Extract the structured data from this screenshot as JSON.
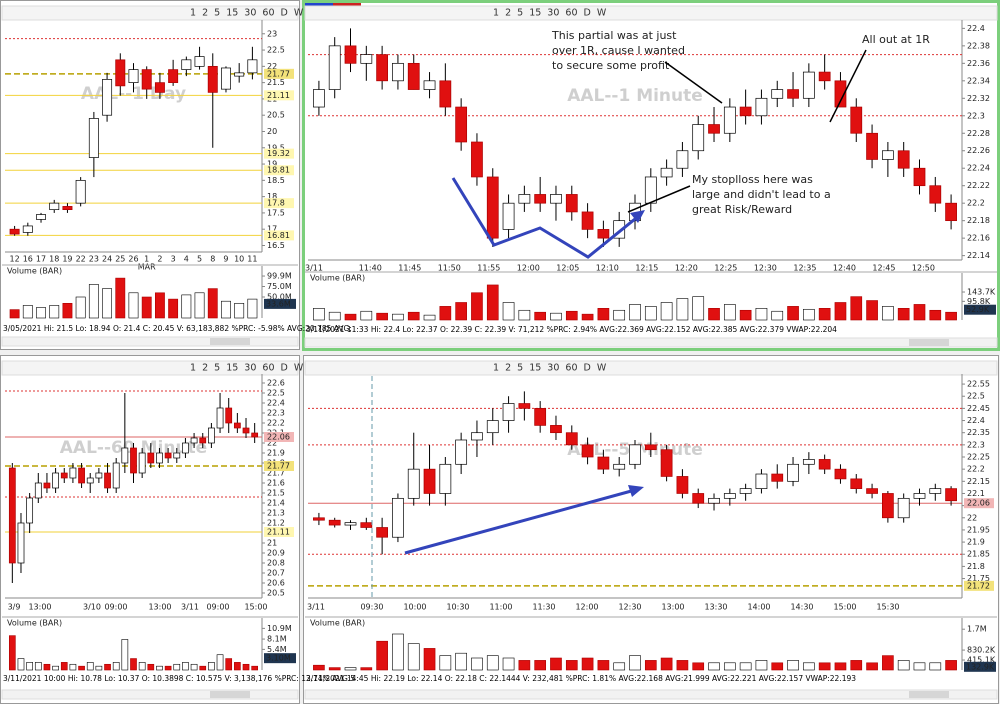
{
  "panels": [
    {
      "toolbar": "1 2 5 15 30 60 D W",
      "watermark": "AAL--1 Day",
      "ylim": [
        16.3,
        23.3
      ],
      "yticks": [
        23,
        22.5,
        22,
        21.5,
        21,
        20.5,
        20,
        19.5,
        19,
        18.5,
        18,
        17.5,
        17,
        16.5
      ],
      "yellow_levels": [
        21.11,
        19.32,
        18.81,
        17.8,
        16.81
      ],
      "red_levels": [
        22.85
      ],
      "price_box": {
        "value": 21.77,
        "color": "#f3e27a"
      },
      "candles": [
        [
          17.0,
          17.1,
          16.8,
          16.85
        ],
        [
          16.9,
          17.2,
          16.8,
          17.1
        ],
        [
          17.3,
          17.5,
          17.2,
          17.45
        ],
        [
          17.6,
          17.9,
          17.5,
          17.8
        ],
        [
          17.7,
          17.8,
          17.5,
          17.6
        ],
        [
          17.8,
          18.6,
          17.7,
          18.5
        ],
        [
          19.2,
          20.6,
          18.6,
          20.4
        ],
        [
          20.5,
          21.8,
          20.3,
          21.6
        ],
        [
          22.2,
          22.4,
          21.1,
          21.4
        ],
        [
          21.5,
          22.1,
          21.2,
          21.9
        ],
        [
          21.9,
          22.0,
          21.0,
          21.3
        ],
        [
          21.5,
          21.8,
          21.0,
          21.2
        ],
        [
          21.9,
          22.2,
          21.4,
          21.5
        ],
        [
          21.9,
          22.3,
          21.7,
          22.2
        ],
        [
          22.0,
          22.6,
          21.9,
          22.3
        ],
        [
          22.0,
          22.4,
          19.5,
          21.2
        ],
        [
          21.3,
          22.0,
          21.2,
          21.95
        ],
        [
          21.7,
          22.1,
          21.5,
          21.8
        ],
        [
          21.8,
          22.6,
          21.6,
          22.2
        ]
      ],
      "time_labels": [
        "12",
        "16",
        "17",
        "18",
        "19",
        "22",
        "23",
        "24",
        "25",
        "26",
        "1",
        "2",
        "3",
        "4",
        "5",
        "8",
        "9",
        "10",
        "11"
      ],
      "month_label": "MAR",
      "volume_title": "Volume (BAR)",
      "volumes": [
        20000000,
        30000000,
        25000000,
        30000000,
        35000000,
        50000000,
        80000000,
        70000000,
        95000000,
        60000000,
        50000000,
        60000000,
        45000000,
        55000000,
        60000000,
        70000000,
        40000000,
        35000000,
        45000000
      ],
      "vlim": [
        0,
        100000000
      ],
      "vticks": [
        {
          "value": 99900000,
          "label": "99.9M"
        },
        {
          "value": 75000000,
          "label": "75.0M"
        },
        {
          "value": 50000000,
          "label": "50.0M"
        }
      ],
      "vbox": {
        "value": 33600000,
        "label": "33.6M",
        "color": "#1f3550"
      },
      "info": "3/05/2021  Hi: 21.5  Lo: 18.94  O: 21.4  C: 20.45  V: 63,183,882 %PRC: -5.98% AVG:20.785 AVG:"
    },
    {
      "toolbar": "1 2 5 15 30 60 D W",
      "watermark": "AAL--1 Minute",
      "ylim": [
        22.135,
        22.405
      ],
      "yticks": [
        22.4,
        22.38,
        22.36,
        22.34,
        22.32,
        22.3,
        22.28,
        22.26,
        22.24,
        22.22,
        22.2,
        22.18,
        22.16,
        22.14
      ],
      "yellow_levels": [],
      "red_levels": [
        22.37,
        22.3
      ],
      "candles": [
        [
          22.31,
          22.34,
          22.3,
          22.33
        ],
        [
          22.33,
          22.39,
          22.32,
          22.38
        ],
        [
          22.38,
          22.4,
          22.35,
          22.36
        ],
        [
          22.36,
          22.38,
          22.34,
          22.37
        ],
        [
          22.37,
          22.38,
          22.33,
          22.34
        ],
        [
          22.34,
          22.37,
          22.33,
          22.36
        ],
        [
          22.36,
          22.37,
          22.33,
          22.33
        ],
        [
          22.33,
          22.35,
          22.32,
          22.34
        ],
        [
          22.34,
          22.36,
          22.3,
          22.31
        ],
        [
          22.31,
          22.32,
          22.26,
          22.27
        ],
        [
          22.27,
          22.28,
          22.22,
          22.23
        ],
        [
          22.23,
          22.24,
          22.15,
          22.16
        ],
        [
          22.17,
          22.21,
          22.16,
          22.2
        ],
        [
          22.2,
          22.22,
          22.19,
          22.21
        ],
        [
          22.21,
          22.23,
          22.19,
          22.2
        ],
        [
          22.2,
          22.22,
          22.18,
          22.21
        ],
        [
          22.21,
          22.22,
          22.18,
          22.19
        ],
        [
          22.19,
          22.2,
          22.16,
          22.17
        ],
        [
          22.17,
          22.18,
          22.15,
          22.16
        ],
        [
          22.16,
          22.19,
          22.15,
          22.18
        ],
        [
          22.18,
          22.21,
          22.17,
          22.2
        ],
        [
          22.2,
          22.24,
          22.19,
          22.23
        ],
        [
          22.23,
          22.25,
          22.22,
          22.24
        ],
        [
          22.24,
          22.27,
          22.23,
          22.26
        ],
        [
          22.26,
          22.3,
          22.25,
          22.29
        ],
        [
          22.29,
          22.31,
          22.27,
          22.28
        ],
        [
          22.28,
          22.32,
          22.27,
          22.31
        ],
        [
          22.31,
          22.33,
          22.29,
          22.3
        ],
        [
          22.3,
          22.33,
          22.29,
          22.32
        ],
        [
          22.32,
          22.34,
          22.31,
          22.33
        ],
        [
          22.33,
          22.35,
          22.31,
          22.32
        ],
        [
          22.32,
          22.36,
          22.31,
          22.35
        ],
        [
          22.35,
          22.37,
          22.33,
          22.34
        ],
        [
          22.34,
          22.35,
          22.31,
          22.31
        ],
        [
          22.31,
          22.32,
          22.27,
          22.28
        ],
        [
          22.28,
          22.29,
          22.24,
          22.25
        ],
        [
          22.25,
          22.27,
          22.23,
          22.26
        ],
        [
          22.26,
          22.27,
          22.23,
          22.24
        ],
        [
          22.24,
          22.25,
          22.21,
          22.22
        ],
        [
          22.22,
          22.23,
          22.19,
          22.2
        ],
        [
          22.2,
          22.21,
          22.17,
          22.18
        ]
      ],
      "time_labels": [
        "3/11",
        "11:40",
        "11:45",
        "11:50",
        "11:55",
        "12:00",
        "12:05",
        "12:10",
        "12:15",
        "12:20",
        "12:25",
        "12:30",
        "12:35",
        "12:40",
        "12:45",
        "12:50"
      ],
      "volume_title": "Volume (BAR)",
      "volumes": [
        60000,
        40000,
        30000,
        45000,
        35000,
        30000,
        40000,
        25000,
        70000,
        90000,
        140000,
        180000,
        90000,
        50000,
        40000,
        35000,
        45000,
        30000,
        60000,
        50000,
        80000,
        70000,
        90000,
        110000,
        120000,
        60000,
        80000,
        50000,
        60000,
        45000,
        70000,
        55000,
        60000,
        90000,
        120000,
        100000,
        70000,
        60000,
        80000,
        50000,
        40000
      ],
      "vlim": [
        0,
        190000
      ],
      "vticks": [
        {
          "value": 143700,
          "label": "143.7K"
        },
        {
          "value": 95800,
          "label": "95.8K"
        }
      ],
      "vbox": {
        "value": 52900,
        "label": "52.9K",
        "color": "#1f3550"
      },
      "info": "3/11/2021 11:33  Hi: 22.4  Lo: 22.37  O: 22.39  C: 22.39  V: 71,212 %PRC: 2.94% AVG:22.369  AVG:22.152  AVG:22.385  AVG:22.379  VWAP:22.204",
      "annotations": [
        [
          "This partial was at just",
          "over 1R, cause I wanted",
          "to secure some profit"
        ],
        [
          "All out at 1R"
        ],
        [
          "My stoplloss here was",
          "large and didn't lead to a",
          "great Risk/Reward"
        ]
      ]
    },
    {
      "toolbar": "1 2 5 15 30 60 D W",
      "watermark": "AAL--60 Minute",
      "ylim": [
        20.45,
        22.65
      ],
      "yticks": [
        22.6,
        22.5,
        22.4,
        22.3,
        22.2,
        22.1,
        22,
        21.9,
        21.8,
        21.7,
        21.6,
        21.5,
        21.4,
        21.3,
        21.2,
        21,
        20.9,
        20.8,
        20.7,
        20.6,
        20.5
      ],
      "yellow_levels": [
        21.11
      ],
      "red_levels": [
        22.52,
        21.46
      ],
      "price_box": {
        "value": 21.77,
        "color": "#f3e27a"
      },
      "red_box": {
        "value": 22.06,
        "color": "#f2b6b6"
      },
      "candles": [
        [
          21.75,
          21.8,
          20.6,
          20.8
        ],
        [
          20.8,
          21.3,
          20.7,
          21.2
        ],
        [
          21.2,
          21.5,
          21.1,
          21.45
        ],
        [
          21.45,
          21.7,
          21.4,
          21.6
        ],
        [
          21.6,
          21.7,
          21.5,
          21.55
        ],
        [
          21.55,
          21.75,
          21.5,
          21.7
        ],
        [
          21.7,
          21.75,
          21.6,
          21.65
        ],
        [
          21.65,
          21.8,
          21.6,
          21.75
        ],
        [
          21.75,
          21.8,
          21.55,
          21.6
        ],
        [
          21.6,
          21.7,
          21.5,
          21.65
        ],
        [
          21.65,
          21.75,
          21.6,
          21.7
        ],
        [
          21.7,
          21.8,
          21.5,
          21.55
        ],
        [
          21.55,
          21.85,
          21.5,
          21.8
        ],
        [
          21.8,
          22.5,
          21.7,
          21.95
        ],
        [
          21.95,
          22.0,
          21.6,
          21.7
        ],
        [
          21.7,
          21.95,
          21.65,
          21.9
        ],
        [
          21.9,
          22.0,
          21.75,
          21.8
        ],
        [
          21.8,
          21.95,
          21.75,
          21.9
        ],
        [
          21.9,
          21.95,
          21.8,
          21.85
        ],
        [
          21.85,
          21.95,
          21.8,
          21.9
        ],
        [
          21.9,
          22.05,
          21.85,
          22.0
        ],
        [
          22.0,
          22.1,
          21.95,
          22.05
        ],
        [
          22.05,
          22.1,
          21.95,
          22.0
        ],
        [
          22.0,
          22.2,
          21.95,
          22.15
        ],
        [
          22.15,
          22.5,
          22.1,
          22.35
        ],
        [
          22.35,
          22.45,
          22.1,
          22.2
        ],
        [
          22.2,
          22.3,
          22.1,
          22.15
        ],
        [
          22.15,
          22.25,
          22.05,
          22.1
        ],
        [
          22.1,
          22.2,
          22.0,
          22.06
        ]
      ],
      "time_labels": [
        "3/9",
        "13:00",
        "3/10",
        "09:00",
        "13:00",
        "3/11",
        "09:00",
        "15:00"
      ],
      "volume_title": "Volume (BAR)",
      "volumes": [
        9000000,
        3000000,
        2000000,
        2000000,
        1500000,
        1000000,
        2000000,
        1500000,
        1000000,
        2000000,
        1000000,
        1500000,
        2000000,
        8000000,
        3000000,
        2000000,
        1500000,
        1000000,
        1000000,
        1500000,
        2000000,
        1500000,
        1000000,
        2000000,
        4000000,
        3000000,
        2000000,
        1500000,
        1000000
      ],
      "vlim": [
        0,
        11000000
      ],
      "vticks": [
        {
          "value": 10900000,
          "label": "10.9M"
        },
        {
          "value": 8100000,
          "label": "8.1M"
        },
        {
          "value": 5400000,
          "label": "5.4M"
        }
      ],
      "vbox": {
        "value": 3100000,
        "label": "3.10M",
        "color": "#1f3550"
      },
      "info": "3/11/2021 10:00  Hi: 10.78  Lo: 10.37  O: 10.3898  C: 10.575  V: 3,138,176 %PRC: 12.74% AVG:5"
    },
    {
      "toolbar": "1 2 5 15 30 60 D W",
      "watermark": "AAL--5 Minute",
      "ylim": [
        21.67,
        22.575
      ],
      "yticks": [
        22.55,
        22.5,
        22.45,
        22.4,
        22.35,
        22.3,
        22.25,
        22.2,
        22.15,
        22.1,
        22.05,
        22,
        21.95,
        21.9,
        21.85,
        21.8,
        21.75
      ],
      "yellow_levels": [],
      "red_levels": [
        22.45,
        22.3,
        21.85
      ],
      "price_box": {
        "value": 21.72,
        "color": "#f3e27a"
      },
      "red_box": {
        "value": 22.06,
        "color": "#f2b6b6"
      },
      "candles": [
        [
          22.0,
          22.02,
          21.97,
          21.99
        ],
        [
          21.99,
          22.0,
          21.96,
          21.97
        ],
        [
          21.97,
          21.99,
          21.95,
          21.98
        ],
        [
          21.98,
          22.0,
          21.95,
          21.96
        ],
        [
          21.96,
          22.0,
          21.85,
          21.92
        ],
        [
          21.92,
          22.1,
          21.9,
          22.08
        ],
        [
          22.08,
          22.35,
          22.05,
          22.2
        ],
        [
          22.2,
          22.3,
          22.05,
          22.1
        ],
        [
          22.1,
          22.25,
          22.05,
          22.22
        ],
        [
          22.22,
          22.35,
          22.18,
          22.32
        ],
        [
          22.32,
          22.4,
          22.25,
          22.35
        ],
        [
          22.35,
          22.45,
          22.3,
          22.4
        ],
        [
          22.4,
          22.5,
          22.35,
          22.47
        ],
        [
          22.47,
          22.52,
          22.4,
          22.45
        ],
        [
          22.45,
          22.48,
          22.35,
          22.38
        ],
        [
          22.38,
          22.42,
          22.32,
          22.35
        ],
        [
          22.35,
          22.38,
          22.28,
          22.3
        ],
        [
          22.3,
          22.33,
          22.22,
          22.25
        ],
        [
          22.25,
          22.28,
          22.18,
          22.2
        ],
        [
          22.2,
          22.25,
          22.17,
          22.22
        ],
        [
          22.22,
          22.32,
          22.2,
          22.3
        ],
        [
          22.3,
          22.35,
          22.25,
          22.28
        ],
        [
          22.28,
          22.3,
          22.15,
          22.17
        ],
        [
          22.17,
          22.2,
          22.08,
          22.1
        ],
        [
          22.1,
          22.12,
          22.04,
          22.06
        ],
        [
          22.06,
          22.1,
          22.03,
          22.08
        ],
        [
          22.08,
          22.12,
          22.05,
          22.1
        ],
        [
          22.1,
          22.14,
          22.07,
          22.12
        ],
        [
          22.12,
          22.2,
          22.1,
          22.18
        ],
        [
          22.18,
          22.22,
          22.12,
          22.15
        ],
        [
          22.15,
          22.25,
          22.13,
          22.22
        ],
        [
          22.22,
          22.27,
          22.18,
          22.24
        ],
        [
          22.24,
          22.26,
          22.18,
          22.2
        ],
        [
          22.2,
          22.22,
          22.14,
          22.16
        ],
        [
          22.16,
          22.18,
          22.1,
          22.12
        ],
        [
          22.12,
          22.14,
          22.08,
          22.1
        ],
        [
          22.1,
          22.11,
          21.98,
          22.0
        ],
        [
          22.0,
          22.1,
          21.98,
          22.08
        ],
        [
          22.08,
          22.12,
          22.05,
          22.1
        ],
        [
          22.1,
          22.14,
          22.07,
          22.12
        ],
        [
          22.12,
          22.13,
          22.05,
          22.07
        ]
      ],
      "time_labels": [
        "3/11",
        "09:30",
        "10:00",
        "10:30",
        "11:00",
        "11:30",
        "12:00",
        "12:30",
        "13:00",
        "13:30",
        "14:00",
        "14:30",
        "15:00",
        "15:30"
      ],
      "volume_title": "Volume (BAR)",
      "volumes": [
        200000,
        100000,
        100000,
        100000,
        1200000,
        1500000,
        1100000,
        900000,
        600000,
        700000,
        500000,
        600000,
        500000,
        400000,
        400000,
        500000,
        400000,
        500000,
        400000,
        300000,
        600000,
        400000,
        500000,
        400000,
        300000,
        300000,
        300000,
        300000,
        400000,
        300000,
        400000,
        300000,
        300000,
        300000,
        400000,
        300000,
        600000,
        400000,
        300000,
        300000,
        400000
      ],
      "vlim": [
        0,
        1750000
      ],
      "vticks": [
        {
          "value": 1700000,
          "label": "1.7M"
        },
        {
          "value": 830200,
          "label": "830.2K"
        },
        {
          "value": 415100,
          "label": "415.1K"
        }
      ],
      "vbox": {
        "value": 132900,
        "label": "132.9K",
        "color": "#1f3550"
      },
      "info": "3/11/2021 14:45  Hi: 22.19  Lo: 22.14  O: 22.18  C: 22.1444  V: 232,481 %PRC: 1.81% AVG:22.168  AVG:21.999  AVG:22.221  AVG:22.157  VWAP:22.193"
    }
  ]
}
